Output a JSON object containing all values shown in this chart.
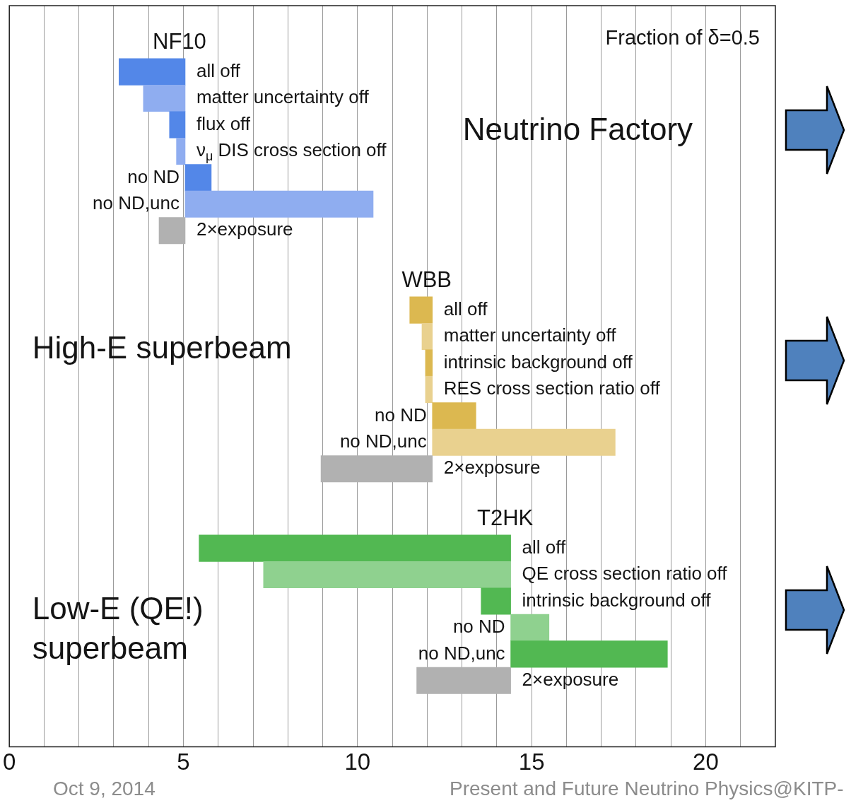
{
  "chart_data": {
    "type": "bar",
    "orientation": "horizontal",
    "title": "Fraction of δ=0.5",
    "categories": [
      null,
      null,
      "all off",
      "matter uncertainty off",
      "flux off",
      "ν$_{μ}$ DIS cross section off",
      "no ND",
      "no ND,unc",
      "2×exposure",
      null,
      null,
      "all off",
      "matter uncertainty off",
      "intrinsic background off",
      "RES cross section ratio off",
      "no ND",
      "no ND,unc",
      "2×exposure",
      null,
      null,
      "all off",
      "QE cross section ratio off",
      "intrinsic background off",
      "no ND",
      "no ND,unc",
      "2×exposure",
      null,
      null
    ],
    "series": [
      {
        "name": "NF10",
        "values": [
          null,
          null,
          -1.9,
          -1.2,
          -0.45,
          -0.25,
          0.75,
          5.4,
          -0.75,
          null,
          null,
          null,
          null,
          null,
          null,
          null,
          null,
          null,
          null,
          null,
          null,
          null,
          null,
          null,
          null,
          null,
          null,
          null
        ],
        "base": [
          null,
          null,
          5.05,
          5.05,
          5.05,
          5.05,
          5.05,
          5.05,
          5.05,
          null,
          null,
          null,
          null,
          null,
          null,
          null,
          null,
          null,
          null,
          null,
          null,
          null,
          null,
          null,
          null,
          null,
          null,
          null
        ],
        "colors": [
          null,
          null,
          "#5387e8",
          "#8fadf0",
          "#5387e8",
          "#8fadf0",
          "#5387e8",
          "#8fadf0",
          "#b1b1b1",
          null,
          null,
          null,
          null,
          null,
          null,
          null,
          null,
          null,
          null,
          null,
          null,
          null,
          null,
          null,
          null,
          null,
          null,
          null
        ]
      },
      {
        "name": "WBB",
        "values": [
          null,
          null,
          null,
          null,
          null,
          null,
          null,
          null,
          null,
          null,
          null,
          -0.65,
          -0.3,
          -0.2,
          -0.2,
          1.25,
          5.25,
          -3.2,
          null,
          null,
          null,
          null,
          null,
          null,
          null,
          null,
          null,
          null
        ],
        "base": [
          null,
          null,
          null,
          null,
          null,
          null,
          null,
          null,
          null,
          null,
          null,
          12.15,
          12.15,
          12.15,
          12.15,
          12.15,
          12.15,
          12.15,
          null,
          null,
          null,
          null,
          null,
          null,
          null,
          null,
          null,
          null
        ],
        "colors": [
          null,
          null,
          null,
          null,
          null,
          null,
          null,
          null,
          null,
          null,
          null,
          "#dcb850",
          "#e9d18f",
          "#dcb850",
          "#e9d18f",
          "#dcb850",
          "#e9d18f",
          "#b1b1b1",
          null,
          null,
          null,
          null,
          null,
          null,
          null,
          null,
          null,
          null
        ]
      },
      {
        "name": "T2HK",
        "values": [
          null,
          null,
          null,
          null,
          null,
          null,
          null,
          null,
          null,
          null,
          null,
          null,
          null,
          null,
          null,
          null,
          null,
          null,
          null,
          null,
          -8.95,
          -7.1,
          -0.85,
          1.1,
          4.5,
          -2.7,
          null,
          null
        ],
        "base": [
          null,
          null,
          null,
          null,
          null,
          null,
          null,
          null,
          null,
          null,
          null,
          null,
          null,
          null,
          null,
          null,
          null,
          null,
          null,
          null,
          14.4,
          14.4,
          14.4,
          14.4,
          14.4,
          14.4,
          null,
          null
        ],
        "colors": [
          null,
          null,
          null,
          null,
          null,
          null,
          null,
          null,
          null,
          null,
          null,
          null,
          null,
          null,
          null,
          null,
          null,
          null,
          null,
          null,
          "#52b852",
          "#8fd18f",
          "#52b852",
          "#8fd18f",
          "#52b852",
          "#b1b1b1",
          null,
          null
        ]
      }
    ],
    "xlim": [
      0,
      22
    ],
    "xticks": [
      0,
      {
        "value": 1,
        "label": null
      },
      {
        "value": 2,
        "label": null
      },
      {
        "value": 3,
        "label": null
      },
      {
        "value": 4,
        "label": null
      },
      5,
      {
        "value": 6,
        "label": null
      },
      {
        "value": 7,
        "label": null
      },
      {
        "value": 8,
        "label": null
      },
      {
        "value": 9,
        "label": null
      },
      10,
      {
        "value": 11,
        "label": null
      },
      {
        "value": 12,
        "label": null
      },
      {
        "value": 13,
        "label": null
      },
      {
        "value": 14,
        "label": null
      },
      15,
      {
        "value": 16,
        "label": null
      },
      {
        "value": 17,
        "label": null
      },
      {
        "value": 18,
        "label": null
      },
      {
        "value": 19,
        "label": null
      },
      20,
      {
        "value": 21,
        "label": null
      }
    ],
    "grid": "x",
    "legend": false,
    "annotations": [
      "Neutrino Factory",
      "High-E superbeam",
      "Low-E (QE!) superbeam",
      "Present and Future Neutrino Physics@KITP-",
      "Oct 9, 2014"
    ]
  }
}
